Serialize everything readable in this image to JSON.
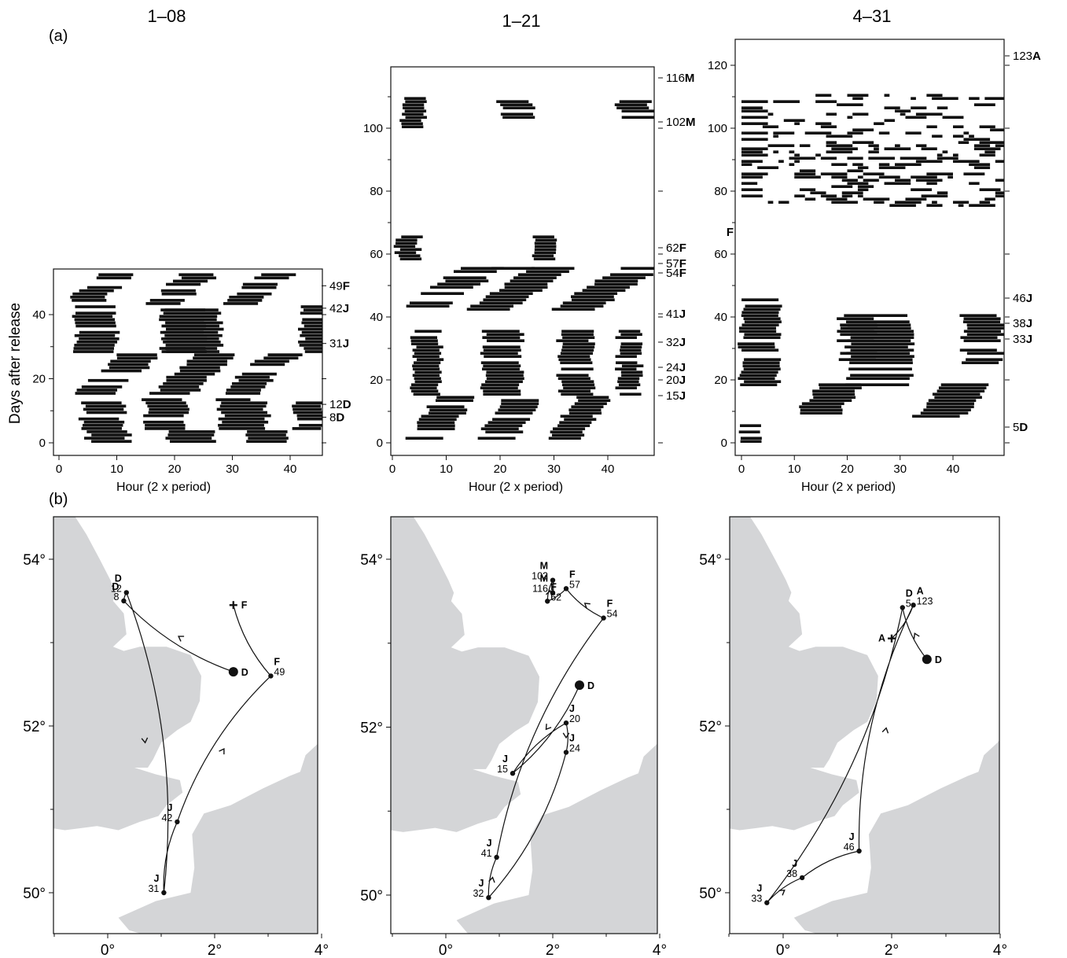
{
  "figure": {
    "label_a": "(a)",
    "label_b": "(b)",
    "ylabel_a": "Days after release",
    "xlabel_a": "Hour (2 x period)"
  },
  "panels": [
    {
      "title": "1–08",
      "ylim": [
        0,
        53
      ],
      "yticks": [
        0,
        20,
        40
      ],
      "xticks": [
        0,
        10,
        20,
        30,
        40
      ],
      "events": [
        {
          "day": 49,
          "num": "49",
          "code": "F"
        },
        {
          "day": 42,
          "num": "42",
          "code": "J"
        },
        {
          "day": 31,
          "num": "31",
          "code": "J"
        },
        {
          "day": 12,
          "num": "12",
          "code": "D"
        },
        {
          "day": 8,
          "num": "8",
          "code": "D"
        }
      ],
      "actogram_bands": [
        {
          "d0": 0,
          "d1": 3,
          "h0": 5,
          "h1": 12
        },
        {
          "d0": 0,
          "d1": 3,
          "h0": 19,
          "h1": 27
        },
        {
          "d0": 0,
          "d1": 3,
          "h0": 33,
          "h1": 40
        },
        {
          "d0": 4,
          "d1": 12,
          "h0": 4,
          "h1": 11
        },
        {
          "d0": 4,
          "d1": 12,
          "h0": 15,
          "h1": 22
        },
        {
          "d0": 4,
          "d1": 12,
          "h0": 28,
          "h1": 36
        },
        {
          "d0": 4,
          "d1": 12,
          "h0": 41,
          "h1": 46
        },
        {
          "d0": 13,
          "d1": 27,
          "h0": 2,
          "h1": 9,
          "slope": 0.6
        },
        {
          "d0": 13,
          "d1": 27,
          "h0": 15,
          "h1": 22,
          "slope": 0.6
        },
        {
          "d0": 13,
          "d1": 27,
          "h0": 27,
          "h1": 33,
          "slope": 0.6
        },
        {
          "d0": 28,
          "d1": 42,
          "h0": 3,
          "h1": 10
        },
        {
          "d0": 28,
          "d1": 42,
          "h0": 18,
          "h1": 28
        },
        {
          "d0": 28,
          "d1": 42,
          "h0": 42,
          "h1": 49
        },
        {
          "d0": 43,
          "d1": 52,
          "h0": 1,
          "h1": 7,
          "slope": 0.7
        },
        {
          "d0": 43,
          "d1": 52,
          "h0": 15,
          "h1": 21,
          "slope": 0.7
        },
        {
          "d0": 43,
          "d1": 52,
          "h0": 28,
          "h1": 34,
          "slope": 0.7
        }
      ]
    },
    {
      "title": "1–21",
      "ylim": [
        0,
        120
      ],
      "yticks": [
        0,
        20,
        40,
        60,
        80,
        100
      ],
      "xticks": [
        0,
        10,
        20,
        30,
        40
      ],
      "events": [
        {
          "day": 116,
          "num": "116",
          "code": "M"
        },
        {
          "day": 102,
          "num": "102",
          "code": "M"
        },
        {
          "day": 62,
          "num": "62",
          "code": "F"
        },
        {
          "day": 57,
          "num": "57",
          "code": "F"
        },
        {
          "day": 54,
          "num": "54",
          "code": "F"
        },
        {
          "day": 41,
          "num": "41",
          "code": "J"
        },
        {
          "day": 32,
          "num": "32",
          "code": "J"
        },
        {
          "day": 24,
          "num": "24",
          "code": "J"
        },
        {
          "day": 20,
          "num": "20",
          "code": "J"
        },
        {
          "day": 15,
          "num": "15",
          "code": "J"
        }
      ],
      "actogram_bands": [
        {
          "d0": 1,
          "d1": 14,
          "h0": 3,
          "h1": 10,
          "slope": 0.4
        },
        {
          "d0": 1,
          "d1": 14,
          "h0": 16,
          "h1": 23,
          "slope": 0.4
        },
        {
          "d0": 1,
          "d1": 14,
          "h0": 29,
          "h1": 35,
          "slope": 0.4
        },
        {
          "d0": 15,
          "d1": 35,
          "h0": 4,
          "h1": 9
        },
        {
          "d0": 15,
          "d1": 35,
          "h0": 17,
          "h1": 24
        },
        {
          "d0": 15,
          "d1": 35,
          "h0": 31,
          "h1": 37
        },
        {
          "d0": 15,
          "d1": 35,
          "h0": 42,
          "h1": 46
        },
        {
          "d0": 42,
          "d1": 55,
          "h0": 1,
          "h1": 9,
          "slope": 0.9
        },
        {
          "d0": 42,
          "d1": 55,
          "h0": 14,
          "h1": 22,
          "slope": 0.9
        },
        {
          "d0": 42,
          "d1": 55,
          "h0": 30,
          "h1": 38,
          "slope": 0.9
        },
        {
          "d0": 58,
          "d1": 65,
          "h0": 1,
          "h1": 5
        },
        {
          "d0": 58,
          "d1": 65,
          "h0": 26,
          "h1": 30
        },
        {
          "d0": 100,
          "d1": 109,
          "h0": 2,
          "h1": 6
        },
        {
          "d0": 103,
          "d1": 108,
          "h0": 20,
          "h1": 26
        },
        {
          "d0": 103,
          "d1": 108,
          "h0": 42,
          "h1": 48
        }
      ]
    },
    {
      "title": "4–31",
      "ylim": [
        0,
        128
      ],
      "yticks": [
        0,
        20,
        40,
        60,
        80,
        100,
        120
      ],
      "xticks": [
        0,
        10,
        20,
        30,
        40
      ],
      "side_letter": "F",
      "side_letter_day": 67,
      "events": [
        {
          "day": 123,
          "num": "123",
          "code": "A"
        },
        {
          "day": 46,
          "num": "46",
          "code": "J"
        },
        {
          "day": 38,
          "num": "38",
          "code": "J"
        },
        {
          "day": 33,
          "num": "33",
          "code": "J"
        },
        {
          "day": 5,
          "num": "5",
          "code": "D"
        }
      ],
      "actogram_bands": [
        {
          "d0": 0,
          "d1": 5,
          "h0": 0,
          "h1": 4
        },
        {
          "d0": 8,
          "d1": 18,
          "h0": 10,
          "h1": 18,
          "slope": 0.5
        },
        {
          "d0": 8,
          "d1": 18,
          "h0": 33,
          "h1": 42,
          "slope": 0.5
        },
        {
          "d0": 18,
          "d1": 45,
          "h0": 0,
          "h1": 7
        },
        {
          "d0": 18,
          "d1": 40,
          "h0": 20,
          "h1": 32
        },
        {
          "d0": 25,
          "d1": 40,
          "h0": 42,
          "h1": 49
        },
        {
          "d0": 75,
          "d1": 110,
          "h0": 0,
          "h1": 49,
          "sparse": true
        }
      ]
    }
  ],
  "maps": {
    "xticks": [
      "0°",
      "2°",
      "4°"
    ],
    "yticks": [
      "54°",
      "52°",
      "50°"
    ],
    "xlim": [
      -1,
      4
    ],
    "ylim": [
      49.6,
      54.6
    ],
    "land_color": "#d4d5d7",
    "panels": [
      {
        "points": [
          {
            "lon": 0.35,
            "lat": 53.6,
            "num": "12",
            "code": "D"
          },
          {
            "lon": 0.3,
            "lat": 53.5,
            "num": "8",
            "code": "D"
          },
          {
            "lon": 3.05,
            "lat": 52.6,
            "num": "49",
            "code": "F"
          },
          {
            "lon": 1.3,
            "lat": 50.85,
            "num": "42",
            "code": "J"
          },
          {
            "lon": 1.05,
            "lat": 50.0,
            "num": "31",
            "code": "J"
          }
        ],
        "release": {
          "lon": 2.35,
          "lat": 52.65,
          "code": "D"
        },
        "recapture": {
          "lon": 2.35,
          "lat": 53.45,
          "code": "F"
        }
      },
      {
        "points": [
          {
            "lon": 2.0,
            "lat": 53.75,
            "num": "102",
            "code": "M"
          },
          {
            "lon": 2.25,
            "lat": 53.65,
            "num": "57",
            "code": "F"
          },
          {
            "lon": 2.0,
            "lat": 53.6,
            "num": "116",
            "code": "M"
          },
          {
            "lon": 1.9,
            "lat": 53.5,
            "num": "62",
            "code": "F"
          },
          {
            "lon": 2.95,
            "lat": 53.3,
            "num": "54",
            "code": "F"
          },
          {
            "lon": 2.25,
            "lat": 52.05,
            "num": "20",
            "code": "J"
          },
          {
            "lon": 2.25,
            "lat": 51.7,
            "num": "24",
            "code": "J"
          },
          {
            "lon": 1.25,
            "lat": 51.45,
            "num": "15",
            "code": "J"
          },
          {
            "lon": 0.95,
            "lat": 50.45,
            "num": "41",
            "code": "J"
          },
          {
            "lon": 0.8,
            "lat": 49.97,
            "num": "32",
            "code": "J"
          }
        ],
        "release": {
          "lon": 2.5,
          "lat": 52.5,
          "code": "D"
        }
      },
      {
        "points": [
          {
            "lon": 2.4,
            "lat": 53.45,
            "num": "123",
            "code": "A"
          },
          {
            "lon": 2.2,
            "lat": 53.42,
            "num": "5",
            "code": "D"
          },
          {
            "lon": 1.4,
            "lat": 50.5,
            "num": "46",
            "code": "J"
          },
          {
            "lon": 0.35,
            "lat": 50.18,
            "num": "38",
            "code": "J"
          },
          {
            "lon": -0.3,
            "lat": 49.88,
            "num": "33",
            "code": "J"
          }
        ],
        "release": {
          "lon": 2.65,
          "lat": 52.8,
          "code": "D"
        },
        "recapture": {
          "lon": 2.0,
          "lat": 53.05,
          "code": "A"
        }
      }
    ]
  }
}
